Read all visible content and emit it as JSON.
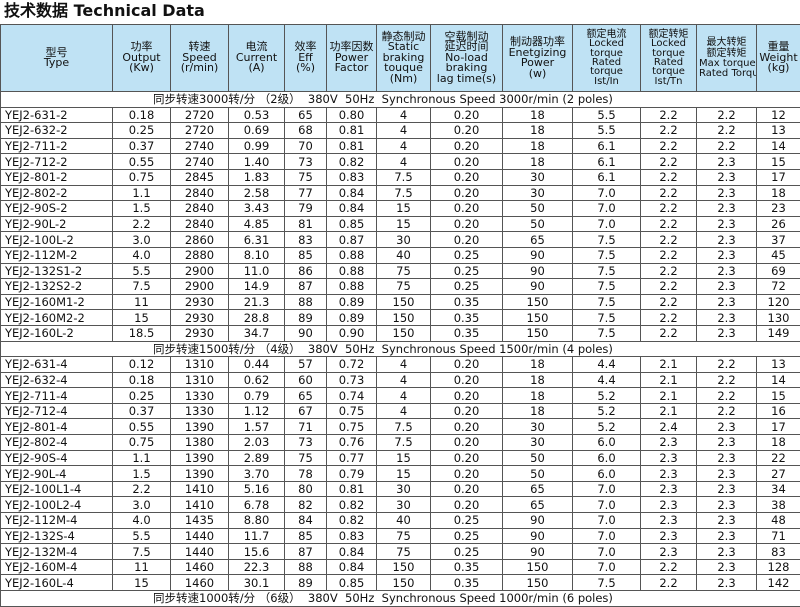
{
  "title": "技术数据 Technical Data",
  "table": {
    "header": [
      [
        "型号",
        "Type"
      ],
      [
        "功率",
        "Output",
        "(Kw)"
      ],
      [
        "转速",
        "Speed",
        "(r/min)"
      ],
      [
        "电流",
        "Current",
        "(A)"
      ],
      [
        "效率",
        "Eff",
        "(%)"
      ],
      [
        "功率因数",
        "Power",
        "Factor"
      ],
      [
        "静态制动",
        "Static",
        "braking",
        "touque",
        "(Nm)"
      ],
      [
        "空载制动",
        "延迟时间",
        "No-load",
        "braking",
        "lag time(s)"
      ],
      [
        "制动器功率",
        "Enetgizing",
        "Power",
        "(w)"
      ],
      [
        "额定电流",
        "Locked",
        "torque",
        "Rated",
        "torque",
        "Ist/In"
      ],
      [
        "额定转矩",
        "Locked",
        "torque",
        "Rated",
        "torque",
        "Ist/Tn"
      ],
      [
        "最大转矩",
        "额定转矩",
        "Max torque",
        "Rated Torque"
      ],
      [
        "重量",
        "Weight",
        "(kg)"
      ]
    ],
    "sections": [
      {
        "label": "同步转速3000转/分 （2级）  380V  50Hz  Synchronous Speed 3000r/min (2 poles)",
        "rows": [
          [
            "YEJ2-631-2",
            "0.18",
            "2720",
            "0.53",
            "65",
            "0.80",
            "4",
            "0.20",
            "18",
            "5.5",
            "2.2",
            "2.2",
            "12"
          ],
          [
            "YEJ2-632-2",
            "0.25",
            "2720",
            "0.69",
            "68",
            "0.81",
            "4",
            "0.20",
            "18",
            "5.5",
            "2.2",
            "2.2",
            "13"
          ],
          [
            "YEJ2-711-2",
            "0.37",
            "2740",
            "0.99",
            "70",
            "0.81",
            "4",
            "0.20",
            "18",
            "6.1",
            "2.2",
            "2.2",
            "14"
          ],
          [
            "YEJ2-712-2",
            "0.55",
            "2740",
            "1.40",
            "73",
            "0.82",
            "4",
            "0.20",
            "18",
            "6.1",
            "2.2",
            "2.3",
            "15"
          ],
          [
            "YEJ2-801-2",
            "0.75",
            "2845",
            "1.83",
            "75",
            "0.83",
            "7.5",
            "0.20",
            "30",
            "6.1",
            "2.2",
            "2.3",
            "17"
          ],
          [
            "YEJ2-802-2",
            "1.1",
            "2840",
            "2.58",
            "77",
            "0.84",
            "7.5",
            "0.20",
            "30",
            "7.0",
            "2.2",
            "2.3",
            "18"
          ],
          [
            "YEJ2-90S-2",
            "1.5",
            "2840",
            "3.43",
            "79",
            "0.84",
            "15",
            "0.20",
            "50",
            "7.0",
            "2.2",
            "2.3",
            "23"
          ],
          [
            "YEJ2-90L-2",
            "2.2",
            "2840",
            "4.85",
            "81",
            "0.85",
            "15",
            "0.20",
            "50",
            "7.0",
            "2.2",
            "2.3",
            "26"
          ],
          [
            "YEJ2-100L-2",
            "3.0",
            "2860",
            "6.31",
            "83",
            "0.87",
            "30",
            "0.20",
            "65",
            "7.5",
            "2.2",
            "2.3",
            "37"
          ],
          [
            "YEJ2-112M-2",
            "4.0",
            "2880",
            "8.10",
            "85",
            "0.88",
            "40",
            "0.25",
            "90",
            "7.5",
            "2.2",
            "2.3",
            "45"
          ],
          [
            "YEJ2-132S1-2",
            "5.5",
            "2900",
            "11.0",
            "86",
            "0.88",
            "75",
            "0.25",
            "90",
            "7.5",
            "2.2",
            "2.3",
            "69"
          ],
          [
            "YEJ2-132S2-2",
            "7.5",
            "2900",
            "14.9",
            "87",
            "0.88",
            "75",
            "0.25",
            "90",
            "7.5",
            "2.2",
            "2.3",
            "72"
          ],
          [
            "YEJ2-160M1-2",
            "11",
            "2930",
            "21.3",
            "88",
            "0.89",
            "150",
            "0.35",
            "150",
            "7.5",
            "2.2",
            "2.3",
            "120"
          ],
          [
            "YEJ2-160M2-2",
            "15",
            "2930",
            "28.8",
            "89",
            "0.89",
            "150",
            "0.35",
            "150",
            "7.5",
            "2.2",
            "2.3",
            "130"
          ],
          [
            "YEJ2-160L-2",
            "18.5",
            "2930",
            "34.7",
            "90",
            "0.90",
            "150",
            "0.35",
            "150",
            "7.5",
            "2.2",
            "2.3",
            "149"
          ]
        ]
      },
      {
        "label": "同步转速1500转/分 （4级）  380V  50Hz  Synchronous Speed 1500r/min (4 poles)",
        "rows": [
          [
            "YEJ2-631-4",
            "0.12",
            "1310",
            "0.44",
            "57",
            "0.72",
            "4",
            "0.20",
            "18",
            "4.4",
            "2.1",
            "2.2",
            "13"
          ],
          [
            "YEJ2-632-4",
            "0.18",
            "1310",
            "0.62",
            "60",
            "0.73",
            "4",
            "0.20",
            "18",
            "4.4",
            "2.1",
            "2.2",
            "14"
          ],
          [
            "YEJ2-711-4",
            "0.25",
            "1330",
            "0.79",
            "65",
            "0.74",
            "4",
            "0.20",
            "18",
            "5.2",
            "2.1",
            "2.2",
            "15"
          ],
          [
            "YEJ2-712-4",
            "0.37",
            "1330",
            "1.12",
            "67",
            "0.75",
            "4",
            "0.20",
            "18",
            "5.2",
            "2.1",
            "2.2",
            "16"
          ],
          [
            "YEJ2-801-4",
            "0.55",
            "1390",
            "1.57",
            "71",
            "0.75",
            "7.5",
            "0.20",
            "30",
            "5.2",
            "2.4",
            "2.3",
            "17"
          ],
          [
            "YEJ2-802-4",
            "0.75",
            "1380",
            "2.03",
            "73",
            "0.76",
            "7.5",
            "0.20",
            "30",
            "6.0",
            "2.3",
            "2.3",
            "18"
          ],
          [
            "YEJ2-90S-4",
            "1.1",
            "1390",
            "2.89",
            "75",
            "0.77",
            "15",
            "0.20",
            "50",
            "6.0",
            "2.3",
            "2.3",
            "22"
          ],
          [
            "YEJ2-90L-4",
            "1.5",
            "1390",
            "3.70",
            "78",
            "0.79",
            "15",
            "0.20",
            "50",
            "6.0",
            "2.3",
            "2.3",
            "27"
          ],
          [
            "YEJ2-100L1-4",
            "2.2",
            "1410",
            "5.16",
            "80",
            "0.81",
            "30",
            "0.20",
            "65",
            "7.0",
            "2.3",
            "2.3",
            "34"
          ],
          [
            "YEJ2-100L2-4",
            "3.0",
            "1410",
            "6.78",
            "82",
            "0.82",
            "30",
            "0.20",
            "65",
            "7.0",
            "2.3",
            "2.3",
            "38"
          ],
          [
            "YEJ2-112M-4",
            "4.0",
            "1435",
            "8.80",
            "84",
            "0.82",
            "40",
            "0.25",
            "90",
            "7.0",
            "2.3",
            "2.3",
            "48"
          ],
          [
            "YEJ2-132S-4",
            "5.5",
            "1440",
            "11.7",
            "85",
            "0.83",
            "75",
            "0.25",
            "90",
            "7.0",
            "2.3",
            "2.3",
            "71"
          ],
          [
            "YEJ2-132M-4",
            "7.5",
            "1440",
            "15.6",
            "87",
            "0.84",
            "75",
            "0.25",
            "90",
            "7.0",
            "2.3",
            "2.3",
            "83"
          ],
          [
            "YEJ2-160M-4",
            "11",
            "1460",
            "22.3",
            "88",
            "0.84",
            "150",
            "0.35",
            "150",
            "7.0",
            "2.2",
            "2.3",
            "128"
          ],
          [
            "YEJ2-160L-4",
            "15",
            "1460",
            "30.1",
            "89",
            "0.85",
            "150",
            "0.35",
            "150",
            "7.5",
            "2.2",
            "2.3",
            "142"
          ]
        ]
      },
      {
        "label": "同步转速1000转/分 （6级）  380V  50Hz  Synchronous Speed 1000r/min (6 poles)",
        "rows": []
      }
    ]
  }
}
